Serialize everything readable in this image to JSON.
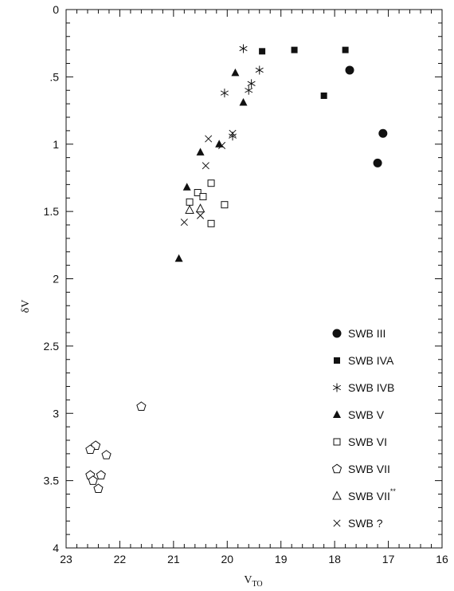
{
  "chart_data": {
    "type": "scatter",
    "title": "",
    "xlabel": "V",
    "xlabel_sub": "TO",
    "ylabel": "δV",
    "xlim": [
      23,
      16
    ],
    "ylim": [
      0,
      4
    ],
    "y_inverted": true,
    "x_ticks": [
      {
        "value": 23,
        "label": "23"
      },
      {
        "value": 22,
        "label": "22"
      },
      {
        "value": 21,
        "label": "21"
      },
      {
        "value": 20,
        "label": "20"
      },
      {
        "value": 19,
        "label": "19"
      },
      {
        "value": 18,
        "label": "18"
      },
      {
        "value": 17,
        "label": "17"
      },
      {
        "value": 16,
        "label": "16"
      }
    ],
    "y_ticks": [
      {
        "value": 0,
        "label": "0"
      },
      {
        "value": 0.5,
        "label": ".5"
      },
      {
        "value": 1,
        "label": "1"
      },
      {
        "value": 1.5,
        "label": "1.5"
      },
      {
        "value": 2,
        "label": "2"
      },
      {
        "value": 2.5,
        "label": "2.5"
      },
      {
        "value": 3,
        "label": "3"
      },
      {
        "value": 3.5,
        "label": "3.5"
      },
      {
        "value": 4,
        "label": "4"
      }
    ],
    "grid": false,
    "legend_position": "bottom-right",
    "series": [
      {
        "name": "SWB III",
        "marker": "filled-circle",
        "points": [
          [
            17.72,
            0.45
          ],
          [
            17.1,
            0.92
          ],
          [
            17.2,
            1.14
          ]
        ]
      },
      {
        "name": "SWB IVA",
        "marker": "filled-square",
        "points": [
          [
            19.35,
            0.31
          ],
          [
            18.75,
            0.3
          ],
          [
            17.8,
            0.3
          ],
          [
            18.2,
            0.64
          ]
        ]
      },
      {
        "name": "SWB IVB",
        "marker": "asterisk",
        "points": [
          [
            19.7,
            0.29
          ],
          [
            19.4,
            0.45
          ],
          [
            19.55,
            0.55
          ],
          [
            19.6,
            0.6
          ],
          [
            20.05,
            0.62
          ],
          [
            19.9,
            0.94
          ]
        ]
      },
      {
        "name": "SWB V",
        "marker": "filled-triangle",
        "points": [
          [
            19.85,
            0.47
          ],
          [
            19.7,
            0.69
          ],
          [
            20.15,
            1.0
          ],
          [
            20.5,
            1.06
          ],
          [
            20.75,
            1.32
          ],
          [
            20.9,
            1.85
          ]
        ]
      },
      {
        "name": "SWB VI",
        "marker": "open-square",
        "points": [
          [
            20.3,
            1.29
          ],
          [
            20.55,
            1.36
          ],
          [
            20.45,
            1.39
          ],
          [
            20.7,
            1.43
          ],
          [
            20.05,
            1.45
          ],
          [
            20.3,
            1.59
          ]
        ]
      },
      {
        "name": "SWB VII",
        "marker": "open-pentagon",
        "points": [
          [
            21.6,
            2.95
          ],
          [
            22.45,
            3.24
          ],
          [
            22.55,
            3.27
          ],
          [
            22.25,
            3.31
          ],
          [
            22.55,
            3.46
          ],
          [
            22.35,
            3.46
          ],
          [
            22.5,
            3.5
          ],
          [
            22.4,
            3.56
          ]
        ]
      },
      {
        "name": "SWB VII",
        "name_superscript": "**",
        "marker": "open-triangle",
        "points": [
          [
            20.7,
            1.49
          ],
          [
            20.5,
            1.48
          ]
        ]
      },
      {
        "name": "SWB ?",
        "marker": "x-cross",
        "points": [
          [
            20.35,
            0.96
          ],
          [
            20.1,
            1.01
          ],
          [
            19.9,
            0.92
          ],
          [
            20.4,
            1.16
          ],
          [
            20.5,
            1.53
          ],
          [
            20.8,
            1.58
          ]
        ]
      }
    ]
  }
}
